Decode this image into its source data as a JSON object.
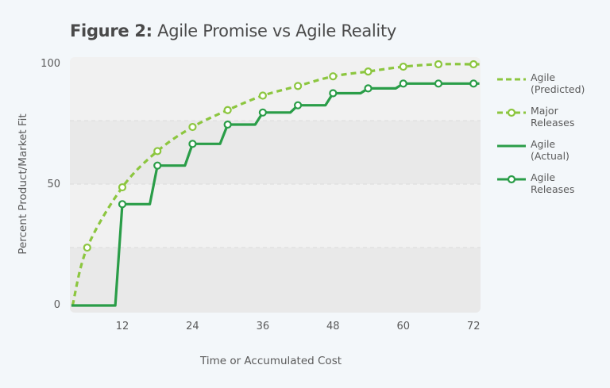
{
  "title": {
    "bold": "Figure 2:",
    "rest": "Agile Promise vs Agile Reality"
  },
  "colors": {
    "predicted": "#8cc63f",
    "actual": "#2a9d48",
    "band_light": "#f1f1f1",
    "band_dark": "#e9e9e9",
    "background": "#f3f7fa",
    "text": "#555555"
  },
  "legend": [
    {
      "label_line1": "Agile",
      "label_line2": "(Predicted)",
      "style": "dashed"
    },
    {
      "label_line1": "Major",
      "label_line2": "Releases",
      "style": "dashed-marker"
    },
    {
      "label_line1": "Agile",
      "label_line2": "(Actual)",
      "style": "solid"
    },
    {
      "label_line1": "Agile",
      "label_line2": "Releases",
      "style": "solid-marker"
    }
  ],
  "chart_data": {
    "type": "line",
    "title": "Figure 2: Agile Promise vs Agile Reality",
    "xlabel": "Time or Accumulated Cost",
    "ylabel": "Percent Product/Market Fit",
    "x_ticks": [
      12,
      24,
      36,
      48,
      60,
      72
    ],
    "y_ticks": [
      0,
      50,
      100
    ],
    "xlim": [
      3.3,
      73
    ],
    "ylim": [
      0,
      100
    ],
    "grid": "alternating horizontal bands, dashed separators",
    "legend_position": "right",
    "series": [
      {
        "name": "Agile (Predicted)",
        "style": "dashed curve",
        "x": [
          3.5,
          6,
          12,
          18,
          24,
          30,
          36,
          42,
          48,
          54,
          60,
          66,
          72
        ],
        "values": [
          0,
          24,
          49,
          64,
          74,
          81,
          87,
          91,
          95,
          97,
          99,
          100,
          100
        ]
      },
      {
        "name": "Major Releases",
        "style": "markers on predicted",
        "x": [
          6,
          12,
          18,
          24,
          30,
          36,
          42,
          48,
          54,
          60,
          66,
          72
        ],
        "values": [
          24,
          49,
          64,
          74,
          81,
          87,
          91,
          95,
          97,
          99,
          100,
          100
        ]
      },
      {
        "name": "Agile (Actual)",
        "style": "solid step",
        "x": [
          3.3,
          10.8,
          12,
          16.7,
          18,
          22.7,
          24,
          28.7,
          30,
          34.7,
          36,
          40.7,
          42,
          46.7,
          48,
          52.7,
          54,
          58.7,
          60,
          66,
          73
        ],
        "values": [
          0,
          0,
          42,
          42,
          58,
          58,
          67,
          67,
          75,
          75,
          80,
          80,
          83,
          83,
          88,
          88,
          90,
          90,
          92,
          92,
          92
        ]
      },
      {
        "name": "Agile Releases",
        "style": "markers on actual",
        "x": [
          12,
          18,
          24,
          30,
          36,
          42,
          48,
          54,
          60,
          66,
          72
        ],
        "values": [
          42,
          58,
          67,
          75,
          80,
          83,
          88,
          90,
          92,
          92,
          92
        ]
      }
    ]
  }
}
